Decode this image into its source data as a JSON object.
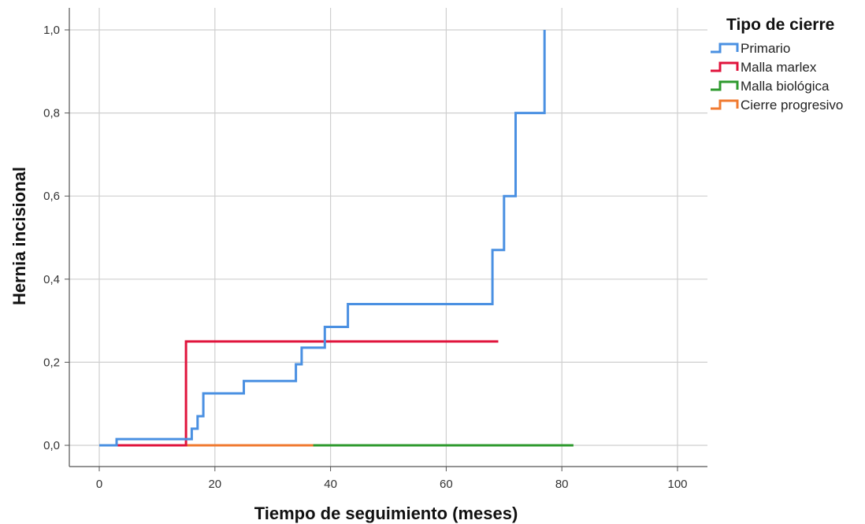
{
  "chart_data": {
    "type": "line",
    "subtype": "kaplan-meier-cumulative-step",
    "xlabel": "Tiempo de seguimiento (meses)",
    "ylabel": "Hernia incisional",
    "xlim": [
      0,
      100
    ],
    "ylim": [
      0,
      1.0
    ],
    "x_ticks": [
      "0",
      "20",
      "40",
      "60",
      "80",
      "100"
    ],
    "x_tick_values": [
      0,
      20,
      40,
      60,
      80,
      100
    ],
    "y_ticks": [
      "0,0",
      "0,2",
      "0,4",
      "0,6",
      "0,8",
      "1,0"
    ],
    "y_tick_values": [
      0,
      0.2,
      0.4,
      0.6,
      0.8,
      1.0
    ],
    "grid": true,
    "legend": {
      "title": "Tipo de cierre",
      "placement": "top-right, outside plot"
    },
    "series": [
      {
        "name": "Primario",
        "color": "#4a90e2",
        "points": [
          [
            0,
            0
          ],
          [
            3,
            0
          ],
          [
            3,
            0.015
          ],
          [
            16,
            0.015
          ],
          [
            16,
            0.04
          ],
          [
            17,
            0.04
          ],
          [
            17,
            0.07
          ],
          [
            18,
            0.07
          ],
          [
            18,
            0.125
          ],
          [
            25,
            0.125
          ],
          [
            25,
            0.155
          ],
          [
            34,
            0.155
          ],
          [
            34,
            0.195
          ],
          [
            35,
            0.195
          ],
          [
            35,
            0.235
          ],
          [
            39,
            0.235
          ],
          [
            39,
            0.285
          ],
          [
            43,
            0.285
          ],
          [
            43,
            0.34
          ],
          [
            68,
            0.34
          ],
          [
            68,
            0.47
          ],
          [
            70,
            0.47
          ],
          [
            70,
            0.6
          ],
          [
            72,
            0.6
          ],
          [
            72,
            0.8
          ],
          [
            77,
            0.8
          ],
          [
            77,
            1.0
          ]
        ]
      },
      {
        "name": "Malla marlex",
        "color": "#e0143c",
        "points": [
          [
            0,
            0
          ],
          [
            15,
            0
          ],
          [
            15,
            0.25
          ],
          [
            69,
            0.25
          ]
        ]
      },
      {
        "name": "Malla biológica",
        "color": "#2e9a2e",
        "points": [
          [
            0,
            0
          ],
          [
            82,
            0
          ]
        ]
      },
      {
        "name": "Cierre progresivo",
        "color": "#f07a30",
        "points": [
          [
            0,
            0
          ],
          [
            37,
            0
          ]
        ]
      }
    ]
  }
}
